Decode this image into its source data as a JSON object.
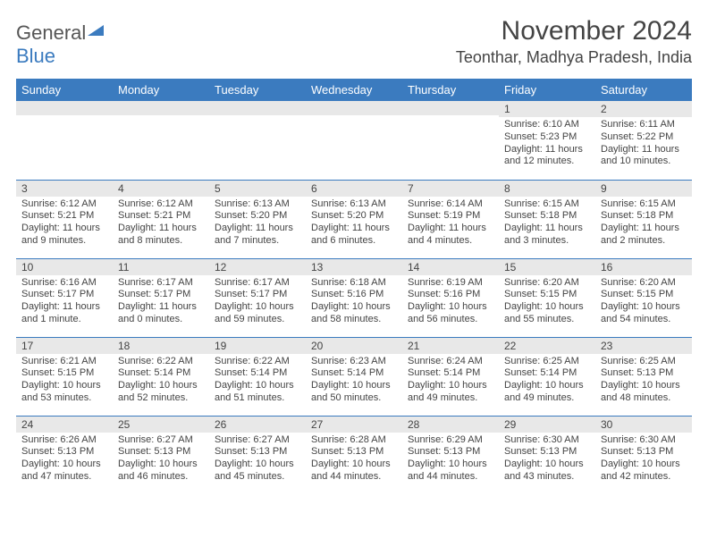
{
  "logo": {
    "general": "General",
    "blue": "Blue",
    "tri_color": "#3b7bbf"
  },
  "title": "November 2024",
  "location": "Teonthar, Madhya Pradesh, India",
  "colors": {
    "header_bg": "#3b7bbf",
    "header_fg": "#ffffff",
    "stripe": "#e8e8e8",
    "border": "#3b7bbf",
    "text": "#444444"
  },
  "dow": [
    "Sunday",
    "Monday",
    "Tuesday",
    "Wednesday",
    "Thursday",
    "Friday",
    "Saturday"
  ],
  "weeks": [
    [
      {
        "n": "",
        "sr": "",
        "ss": "",
        "dl": ""
      },
      {
        "n": "",
        "sr": "",
        "ss": "",
        "dl": ""
      },
      {
        "n": "",
        "sr": "",
        "ss": "",
        "dl": ""
      },
      {
        "n": "",
        "sr": "",
        "ss": "",
        "dl": ""
      },
      {
        "n": "",
        "sr": "",
        "ss": "",
        "dl": ""
      },
      {
        "n": "1",
        "sr": "Sunrise: 6:10 AM",
        "ss": "Sunset: 5:23 PM",
        "dl": "Daylight: 11 hours and 12 minutes."
      },
      {
        "n": "2",
        "sr": "Sunrise: 6:11 AM",
        "ss": "Sunset: 5:22 PM",
        "dl": "Daylight: 11 hours and 10 minutes."
      }
    ],
    [
      {
        "n": "3",
        "sr": "Sunrise: 6:12 AM",
        "ss": "Sunset: 5:21 PM",
        "dl": "Daylight: 11 hours and 9 minutes."
      },
      {
        "n": "4",
        "sr": "Sunrise: 6:12 AM",
        "ss": "Sunset: 5:21 PM",
        "dl": "Daylight: 11 hours and 8 minutes."
      },
      {
        "n": "5",
        "sr": "Sunrise: 6:13 AM",
        "ss": "Sunset: 5:20 PM",
        "dl": "Daylight: 11 hours and 7 minutes."
      },
      {
        "n": "6",
        "sr": "Sunrise: 6:13 AM",
        "ss": "Sunset: 5:20 PM",
        "dl": "Daylight: 11 hours and 6 minutes."
      },
      {
        "n": "7",
        "sr": "Sunrise: 6:14 AM",
        "ss": "Sunset: 5:19 PM",
        "dl": "Daylight: 11 hours and 4 minutes."
      },
      {
        "n": "8",
        "sr": "Sunrise: 6:15 AM",
        "ss": "Sunset: 5:18 PM",
        "dl": "Daylight: 11 hours and 3 minutes."
      },
      {
        "n": "9",
        "sr": "Sunrise: 6:15 AM",
        "ss": "Sunset: 5:18 PM",
        "dl": "Daylight: 11 hours and 2 minutes."
      }
    ],
    [
      {
        "n": "10",
        "sr": "Sunrise: 6:16 AM",
        "ss": "Sunset: 5:17 PM",
        "dl": "Daylight: 11 hours and 1 minute."
      },
      {
        "n": "11",
        "sr": "Sunrise: 6:17 AM",
        "ss": "Sunset: 5:17 PM",
        "dl": "Daylight: 11 hours and 0 minutes."
      },
      {
        "n": "12",
        "sr": "Sunrise: 6:17 AM",
        "ss": "Sunset: 5:17 PM",
        "dl": "Daylight: 10 hours and 59 minutes."
      },
      {
        "n": "13",
        "sr": "Sunrise: 6:18 AM",
        "ss": "Sunset: 5:16 PM",
        "dl": "Daylight: 10 hours and 58 minutes."
      },
      {
        "n": "14",
        "sr": "Sunrise: 6:19 AM",
        "ss": "Sunset: 5:16 PM",
        "dl": "Daylight: 10 hours and 56 minutes."
      },
      {
        "n": "15",
        "sr": "Sunrise: 6:20 AM",
        "ss": "Sunset: 5:15 PM",
        "dl": "Daylight: 10 hours and 55 minutes."
      },
      {
        "n": "16",
        "sr": "Sunrise: 6:20 AM",
        "ss": "Sunset: 5:15 PM",
        "dl": "Daylight: 10 hours and 54 minutes."
      }
    ],
    [
      {
        "n": "17",
        "sr": "Sunrise: 6:21 AM",
        "ss": "Sunset: 5:15 PM",
        "dl": "Daylight: 10 hours and 53 minutes."
      },
      {
        "n": "18",
        "sr": "Sunrise: 6:22 AM",
        "ss": "Sunset: 5:14 PM",
        "dl": "Daylight: 10 hours and 52 minutes."
      },
      {
        "n": "19",
        "sr": "Sunrise: 6:22 AM",
        "ss": "Sunset: 5:14 PM",
        "dl": "Daylight: 10 hours and 51 minutes."
      },
      {
        "n": "20",
        "sr": "Sunrise: 6:23 AM",
        "ss": "Sunset: 5:14 PM",
        "dl": "Daylight: 10 hours and 50 minutes."
      },
      {
        "n": "21",
        "sr": "Sunrise: 6:24 AM",
        "ss": "Sunset: 5:14 PM",
        "dl": "Daylight: 10 hours and 49 minutes."
      },
      {
        "n": "22",
        "sr": "Sunrise: 6:25 AM",
        "ss": "Sunset: 5:14 PM",
        "dl": "Daylight: 10 hours and 49 minutes."
      },
      {
        "n": "23",
        "sr": "Sunrise: 6:25 AM",
        "ss": "Sunset: 5:13 PM",
        "dl": "Daylight: 10 hours and 48 minutes."
      }
    ],
    [
      {
        "n": "24",
        "sr": "Sunrise: 6:26 AM",
        "ss": "Sunset: 5:13 PM",
        "dl": "Daylight: 10 hours and 47 minutes."
      },
      {
        "n": "25",
        "sr": "Sunrise: 6:27 AM",
        "ss": "Sunset: 5:13 PM",
        "dl": "Daylight: 10 hours and 46 minutes."
      },
      {
        "n": "26",
        "sr": "Sunrise: 6:27 AM",
        "ss": "Sunset: 5:13 PM",
        "dl": "Daylight: 10 hours and 45 minutes."
      },
      {
        "n": "27",
        "sr": "Sunrise: 6:28 AM",
        "ss": "Sunset: 5:13 PM",
        "dl": "Daylight: 10 hours and 44 minutes."
      },
      {
        "n": "28",
        "sr": "Sunrise: 6:29 AM",
        "ss": "Sunset: 5:13 PM",
        "dl": "Daylight: 10 hours and 44 minutes."
      },
      {
        "n": "29",
        "sr": "Sunrise: 6:30 AM",
        "ss": "Sunset: 5:13 PM",
        "dl": "Daylight: 10 hours and 43 minutes."
      },
      {
        "n": "30",
        "sr": "Sunrise: 6:30 AM",
        "ss": "Sunset: 5:13 PM",
        "dl": "Daylight: 10 hours and 42 minutes."
      }
    ]
  ]
}
